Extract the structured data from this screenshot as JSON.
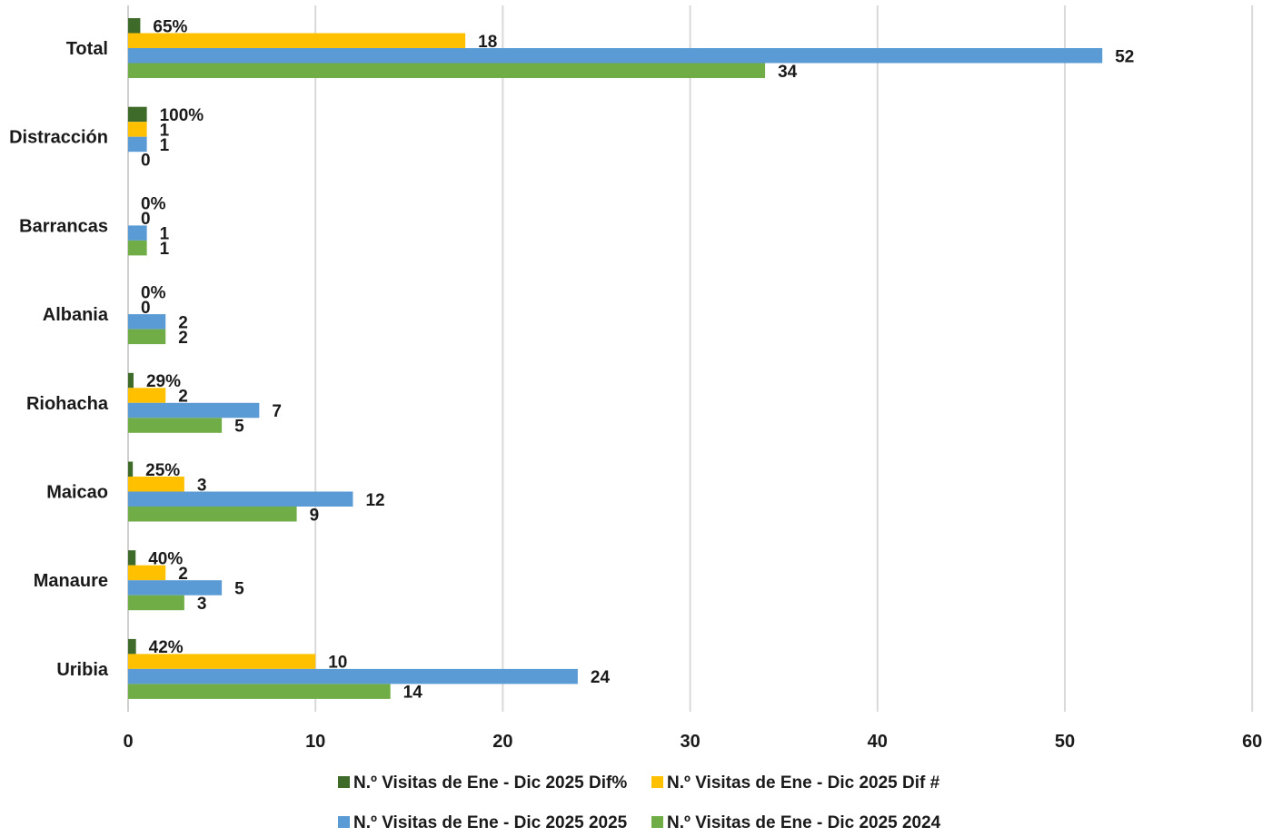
{
  "chart_data": {
    "type": "bar",
    "orientation": "horizontal",
    "categories": [
      "Total",
      "Distracción",
      "Barrancas",
      "Albania",
      "Riohacha",
      "Maicao",
      "Manaure",
      "Uribia"
    ],
    "series": [
      {
        "name": "N.º Visitas de Ene - Dic 2025 Dif%",
        "color": "#3f6b2a",
        "values": [
          0.65,
          1.0,
          0,
          0,
          0.29,
          0.25,
          0.4,
          0.42
        ],
        "labels": [
          "65%",
          "100%",
          "0%",
          "0%",
          "29%",
          "25%",
          "40%",
          "42%"
        ]
      },
      {
        "name": "N.º Visitas de Ene - Dic 2025 Dif #",
        "color": "#ffc000",
        "values": [
          18,
          1,
          0,
          0,
          2,
          3,
          2,
          10
        ],
        "labels": [
          "18",
          "1",
          "0",
          "0",
          "2",
          "3",
          "2",
          "10"
        ]
      },
      {
        "name": "N.º Visitas de Ene - Dic 2025 2025",
        "color": "#5b9bd5",
        "values": [
          52,
          1,
          1,
          2,
          7,
          12,
          5,
          24
        ],
        "labels": [
          "52",
          "1",
          "1",
          "2",
          "7",
          "12",
          "5",
          "24"
        ]
      },
      {
        "name": "N.º Visitas de Ene - Dic 2025 2024",
        "color": "#70ad47",
        "values": [
          34,
          0,
          1,
          2,
          5,
          9,
          3,
          14
        ],
        "labels": [
          "34",
          "0",
          "1",
          "2",
          "5",
          "9",
          "3",
          "14"
        ]
      }
    ],
    "xlim": [
      0,
      60
    ],
    "xticks": [
      "0",
      "10",
      "20",
      "30",
      "40",
      "50",
      "60"
    ],
    "grid": true,
    "legend_position": "bottom",
    "title": "",
    "xlabel": "",
    "ylabel": ""
  }
}
